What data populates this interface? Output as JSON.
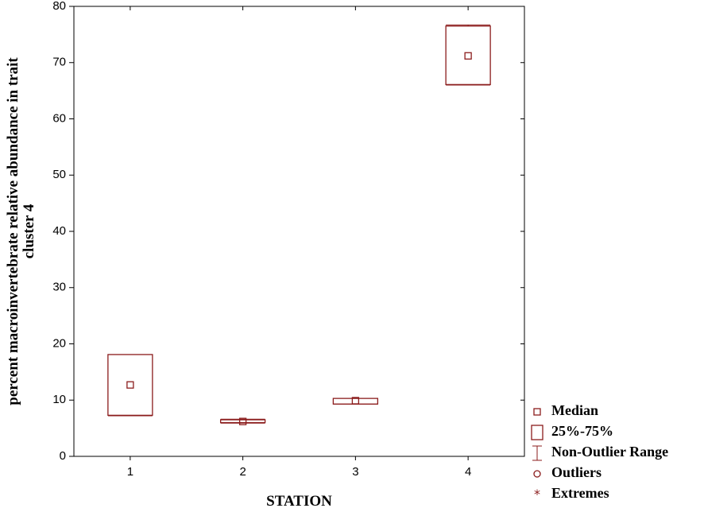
{
  "chart_data": {
    "type": "box",
    "xlabel": "STATION",
    "ylabel": [
      "percent macroinvertebrate relative abundance in trait",
      "cluster 4"
    ],
    "categories": [
      "1",
      "2",
      "3",
      "4"
    ],
    "median": [
      12.7,
      6.2,
      9.9,
      71.2
    ],
    "q1": [
      7.3,
      6.0,
      9.3,
      66.1
    ],
    "q3": [
      18.1,
      6.5,
      10.3,
      76.5
    ],
    "min": [
      7.2,
      5.9,
      9.3,
      66.0
    ],
    "max": [
      18.1,
      6.6,
      10.3,
      76.7
    ],
    "color": "#8b1c1c",
    "ylim": [
      0,
      80
    ],
    "yticks": [
      0,
      10,
      20,
      30,
      40,
      50,
      60,
      70,
      80
    ],
    "legend": [
      "Median",
      "25%-75%",
      "Non-Outlier Range",
      "Outliers",
      "Extremes"
    ],
    "legend_position": "lower right"
  }
}
